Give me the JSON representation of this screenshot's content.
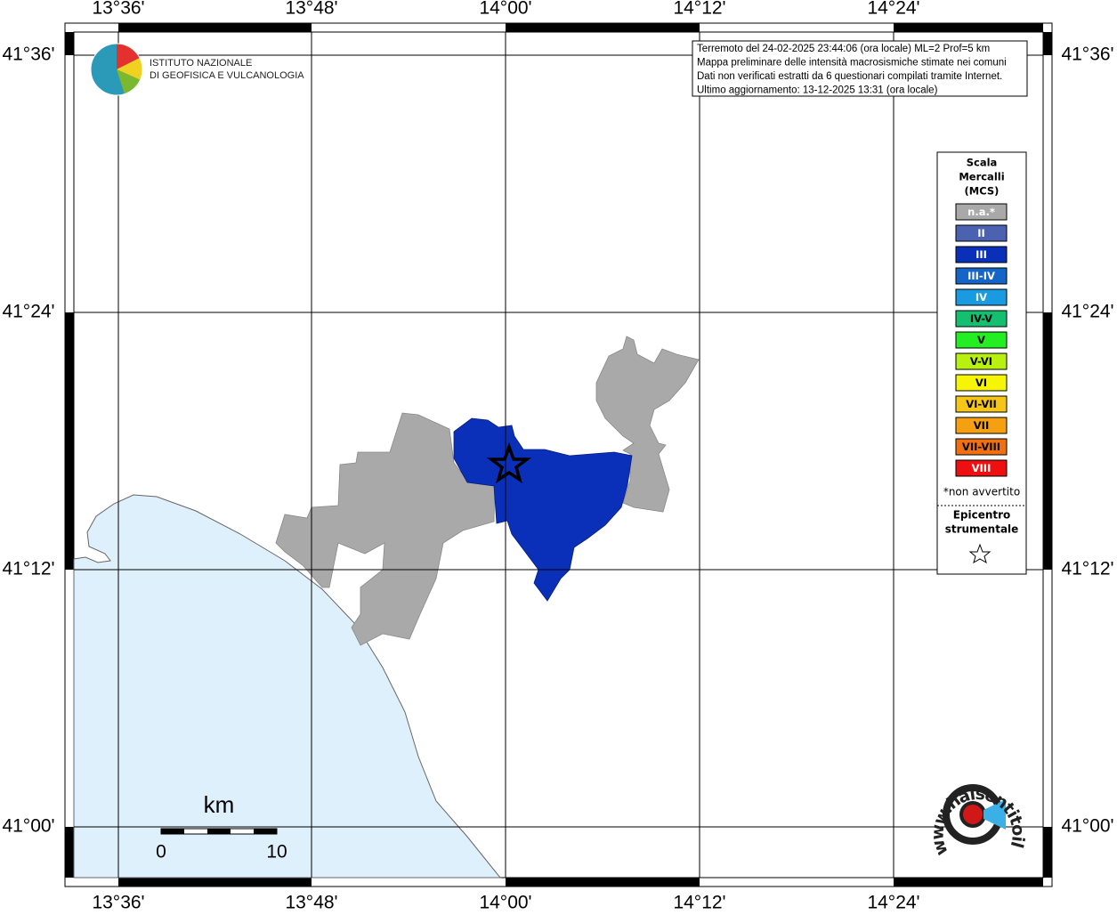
{
  "map": {
    "lon_labels": [
      "13°36'",
      "13°48'",
      "14°00'",
      "14°12'",
      "14°24'"
    ],
    "lat_labels": [
      "41°36'",
      "41°24'",
      "41°12'",
      "41°00'"
    ],
    "logo": {
      "line1": "ISTITUTO NAZIONALE",
      "line2": "DI GEOFISICA E VULCANOLOGIA"
    },
    "info": [
      "Terremoto del 24-02-2025 23:44:06 (ora locale) ML=2 Prof=5 km",
      "Mappa preliminare delle intensità macrosismiche stimate nei comuni",
      "Dati non verificati estratti da 6 questionari compilati tramite Internet.",
      "Ultimo aggiornamento: 13-12-2025 13:31 (ora locale)"
    ],
    "legend": {
      "title": [
        "Scala",
        "Mercalli",
        "(MCS)"
      ],
      "items": [
        {
          "label": "n.a.*",
          "color": "#a9a9a9",
          "text_color": "#ffffff"
        },
        {
          "label": "II",
          "color": "#4a62b0",
          "text_color": "#ffffff"
        },
        {
          "label": "III",
          "color": "#0a2fb8",
          "text_color": "#ffffff"
        },
        {
          "label": "III-IV",
          "color": "#1565c8",
          "text_color": "#ffffff"
        },
        {
          "label": "IV",
          "color": "#1a9ae0",
          "text_color": "#ffffff"
        },
        {
          "label": "IV-V",
          "color": "#14c070",
          "text_color": "#000000"
        },
        {
          "label": "V",
          "color": "#22ee22",
          "text_color": "#000000"
        },
        {
          "label": "V-VI",
          "color": "#b8f010",
          "text_color": "#000000"
        },
        {
          "label": "VI",
          "color": "#f5f505",
          "text_color": "#000000"
        },
        {
          "label": "VI-VII",
          "color": "#f5c518",
          "text_color": "#000000"
        },
        {
          "label": "VII",
          "color": "#f5a010",
          "text_color": "#000000"
        },
        {
          "label": "VII-VIII",
          "color": "#f07010",
          "text_color": "#000000"
        },
        {
          "label": "VIII",
          "color": "#ee1010",
          "text_color": "#ffffff"
        }
      ],
      "footnote": "*non avvertito",
      "epicenter": [
        "Epicentro",
        "strumentale"
      ]
    },
    "scale_bar": {
      "unit": "km",
      "start": "0",
      "end": "10"
    },
    "site_logo": "www.haisentitoilterremoto.it"
  }
}
